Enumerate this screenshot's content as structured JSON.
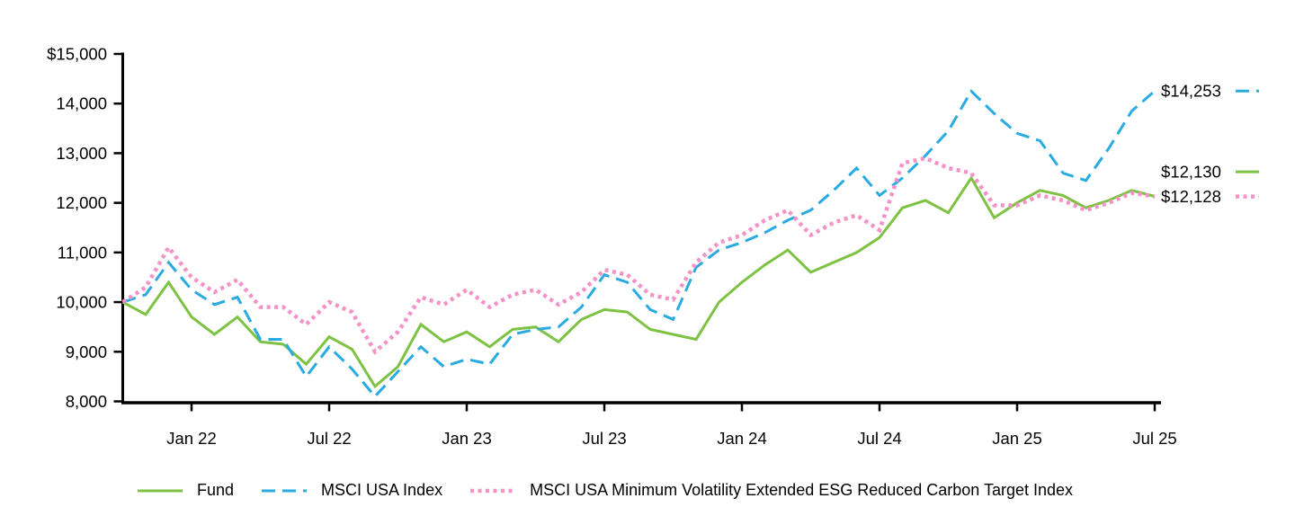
{
  "chart_data": {
    "type": "line",
    "legend_position": "bottom",
    "grid": false,
    "y_axis": {
      "min": 8000,
      "max": 15000,
      "step": 1000,
      "tick_labels": [
        "$15,000",
        "14,000",
        "13,000",
        "12,000",
        "11,000",
        "10,000",
        "9,000",
        "8,000"
      ]
    },
    "x_axis": {
      "tick_labels": [
        "Jan 22",
        "Jul 22",
        "Jan 23",
        "Jul 23",
        "Jan 24",
        "Jul 24",
        "Jan 25",
        "Jul 25"
      ],
      "tick_indices": [
        3,
        9,
        15,
        21,
        27,
        33,
        39,
        45
      ]
    },
    "x": [
      "Oct 21",
      "Nov 21",
      "Dec 21",
      "Jan 22",
      "Feb 22",
      "Mar 22",
      "Apr 22",
      "May 22",
      "Jun 22",
      "Jul 22",
      "Aug 22",
      "Sep 22",
      "Oct 22",
      "Nov 22",
      "Dec 22",
      "Jan 23",
      "Feb 23",
      "Mar 23",
      "Apr 23",
      "May 23",
      "Jun 23",
      "Jul 23",
      "Aug 23",
      "Sep 23",
      "Oct 23",
      "Nov 23",
      "Dec 23",
      "Jan 24",
      "Feb 24",
      "Mar 24",
      "Apr 24",
      "May 24",
      "Jun 24",
      "Jul 24",
      "Aug 24",
      "Sep 24",
      "Oct 24",
      "Nov 24",
      "Dec 24",
      "Jan 25",
      "Feb 25",
      "Mar 25",
      "Apr 25",
      "May 25",
      "Jun 25",
      "Jul 25"
    ],
    "series": [
      {
        "name": "Fund",
        "style": "solid",
        "color": "#7dc242",
        "end_label": "$12,130",
        "values": [
          10000,
          9750,
          10400,
          9700,
          9350,
          9700,
          9200,
          9150,
          8750,
          9300,
          9050,
          8300,
          8700,
          9550,
          9200,
          9400,
          9100,
          9450,
          9500,
          9200,
          9650,
          9850,
          9800,
          9450,
          9350,
          9250,
          10000,
          10400,
          10750,
          11050,
          10600,
          10800,
          11000,
          11300,
          11900,
          12050,
          11800,
          12500,
          11700,
          12000,
          12250,
          12150,
          11900,
          12050,
          12250,
          12130
        ]
      },
      {
        "name": "MSCI USA Index",
        "style": "dashed",
        "color": "#29abe2",
        "end_label": "$14,253",
        "values": [
          10000,
          10150,
          10800,
          10250,
          9950,
          10100,
          9250,
          9250,
          8500,
          9100,
          8650,
          8100,
          8600,
          9100,
          8700,
          8850,
          8750,
          9350,
          9450,
          9500,
          9900,
          10550,
          10400,
          9850,
          9650,
          10700,
          11050,
          11200,
          11400,
          11650,
          11850,
          12250,
          12700,
          12150,
          12500,
          12950,
          13450,
          14250,
          13800,
          13400,
          13250,
          12600,
          12450,
          13100,
          13850,
          14253
        ]
      },
      {
        "name": "MSCI USA Minimum Volatility Extended ESG Reduced Carbon Target Index",
        "style": "dotted",
        "color": "#f493c7",
        "end_label": "$12,128",
        "values": [
          10000,
          10300,
          11100,
          10500,
          10200,
          10450,
          9900,
          9900,
          9550,
          10000,
          9800,
          9000,
          9400,
          10100,
          9950,
          10250,
          9900,
          10150,
          10250,
          9950,
          10200,
          10650,
          10550,
          10150,
          10050,
          10800,
          11200,
          11350,
          11650,
          11850,
          11350,
          11600,
          11750,
          11450,
          12800,
          12900,
          12700,
          12600,
          11950,
          11950,
          12150,
          12050,
          11850,
          12000,
          12200,
          12128
        ]
      }
    ]
  }
}
